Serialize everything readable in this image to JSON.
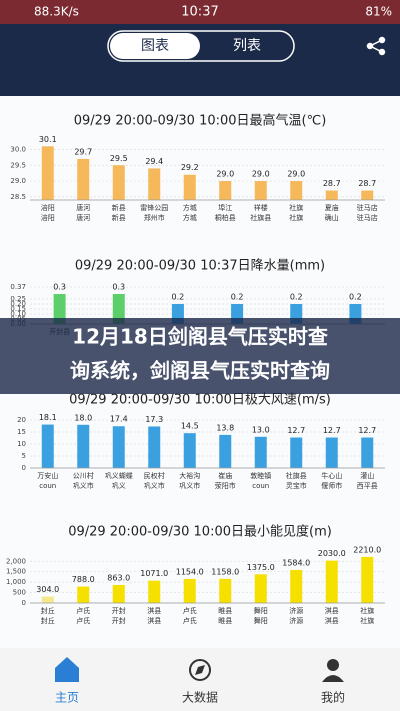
{
  "status_bar": {
    "speed": "88.3K/s",
    "time": "10:37",
    "battery": "81%"
  },
  "tabs": [
    "图表",
    "列表"
  ],
  "chart_data": [
    {
      "type": "bar",
      "title": "09/29 20:00-09/30 10:00日最高气温(℃)",
      "categories": [
        [
          "涪阳",
          "涪阳"
        ],
        [
          "唐河",
          "唐河"
        ],
        [
          "新县",
          "新县"
        ],
        [
          "雷锋公园",
          "郑州市"
        ],
        [
          "方城",
          "方城"
        ],
        [
          "埠江",
          "桐柏县"
        ],
        [
          "祥楼",
          "社旗县"
        ],
        [
          "社旗",
          "社旗"
        ],
        [
          "夏庙",
          "确山"
        ],
        [
          "驻马店",
          "驻马店"
        ]
      ],
      "values": [
        30.1,
        29.7,
        29.5,
        29.4,
        29.2,
        29.0,
        29.0,
        29.0,
        28.7,
        28.7
      ],
      "value_labels": [
        "30.1",
        "29.7",
        "29.5",
        "29.4",
        "29.2",
        "29.0",
        "29.0",
        "29.0",
        "28.7",
        "28.7"
      ],
      "colors": [
        "#f5b85a",
        "#f5b85a",
        "#f5b85a",
        "#f5b85a",
        "#f5b85a",
        "#f5b85a",
        "#f5b85a",
        "#f5b85a",
        "#f5b85a",
        "#f5b85a"
      ],
      "ylim": [
        28.4,
        30.3
      ],
      "yticks": [
        {
          "value": 28.5,
          "label": "28.5"
        },
        {
          "value": 29,
          "label": "29.0"
        },
        {
          "value": 29.5,
          "label": "29.5"
        },
        {
          "value": 30,
          "label": "30.0"
        }
      ],
      "grid": true
    },
    {
      "type": "bar",
      "title": "09/29 20:00-09/30 10:37日降水量(mm)",
      "categories": [
        [
          "开封县",
          null
        ],
        [
          null,
          null
        ],
        [
          null,
          null
        ],
        [
          null,
          null
        ],
        [
          null,
          null
        ],
        [
          null,
          null
        ]
      ],
      "values": [
        0.3,
        0.3,
        0.2,
        0.2,
        0.2,
        0.2
      ],
      "value_labels": [
        "0.3",
        "0.3",
        "0.2",
        "0.2",
        "0.2",
        "0.2"
      ],
      "colors": [
        "#5ccf6a",
        "#5ccf6a",
        "#3aa0e0",
        "#3aa0e0",
        "#3aa0e0",
        "#3aa0e0"
      ],
      "ylim": [
        0,
        0.37
      ],
      "yticks": [
        {
          "value": 0,
          "label": "0.00"
        },
        {
          "value": 0.05,
          "label": "0.05"
        },
        {
          "value": 0.1,
          "label": "0.10"
        },
        {
          "value": 0.15,
          "label": "0.15"
        },
        {
          "value": 0.2,
          "label": "0.20"
        },
        {
          "value": 0.25,
          "label": "0.25"
        },
        0.37
      ],
      "grid": true
    },
    {
      "type": "bar",
      "title": "09/29 20:00-09/30 10:00日极大风速(m/s)",
      "categories": [
        [
          "万安山",
          "coun"
        ],
        [
          "公川村",
          "巩义市"
        ],
        [
          "巩义蝴蝶",
          "巩义"
        ],
        [
          "民权村",
          "巩义市"
        ],
        [
          "大裕沟",
          "巩义市"
        ],
        [
          "崔庙",
          "荥阳市"
        ],
        [
          "敦睦镇",
          "coun"
        ],
        [
          "社旗县",
          "灵宝市"
        ],
        [
          "牛心山",
          "偃师市"
        ],
        [
          "灌山",
          "西平县"
        ]
      ],
      "values": [
        18.1,
        18.0,
        17.4,
        17.3,
        14.5,
        13.8,
        13.0,
        12.7,
        12.7,
        12.7
      ],
      "value_labels": [
        "18.1",
        "18.0",
        "17.4",
        "17.3",
        "14.5",
        "13.8",
        "13.0",
        "12.7",
        "12.7",
        "12.7"
      ],
      "colors": [
        "#3aa0e0",
        "#3aa0e0",
        "#3aa0e0",
        "#3aa0e0",
        "#3aa0e0",
        "#3aa0e0",
        "#3aa0e0",
        "#3aa0e0",
        "#3aa0e0",
        "#3aa0e0"
      ],
      "ylim": [
        0,
        20
      ],
      "yticks": [
        0,
        5,
        10,
        15,
        20
      ],
      "grid": true
    },
    {
      "type": "bar",
      "title": "09/29 20:00-09/30 10:00日最小能见度(m)",
      "categories": [
        [
          "封丘",
          "封丘"
        ],
        [
          "卢氏",
          "卢氏"
        ],
        [
          "开封",
          "开封"
        ],
        [
          "淇县",
          "淇县"
        ],
        [
          "卢氏",
          "卢氏"
        ],
        [
          "睢县",
          "睢县"
        ],
        [
          "舞阳",
          "舞阳"
        ],
        [
          "济源",
          "济源"
        ],
        [
          "淇县",
          "淇县"
        ],
        [
          "社旗",
          "社旗"
        ]
      ],
      "values": [
        304.0,
        788.0,
        863.0,
        1071.0,
        1154.0,
        1158.0,
        1375.0,
        1584.0,
        2030.0,
        2210.0
      ],
      "value_labels": [
        "304.0",
        "788.0",
        "863.0",
        "1071.0",
        "1154.0",
        "1158.0",
        "1375.0",
        "1584.0",
        "2030.0",
        "2210.0"
      ],
      "colors": [
        "#f2e98a",
        "#f5e000",
        "#f5e000",
        "#f5e000",
        "#f5e000",
        "#f5e000",
        "#f5e000",
        "#f5e000",
        "#f5e000",
        "#f5e000"
      ],
      "ylim": [
        0,
        2300
      ],
      "yticks": [
        0,
        500,
        {
          "value": 1000,
          "label": "1,000"
        },
        {
          "value": 1500,
          "label": "1,500"
        },
        {
          "value": 2000,
          "label": "2,000"
        }
      ],
      "grid": true
    }
  ],
  "overlay_title": [
    "12月18日剑阁县气压实时查",
    "询系统，剑阁县气压实时查询"
  ],
  "nav": [
    "主页",
    "大数据",
    "我的"
  ]
}
